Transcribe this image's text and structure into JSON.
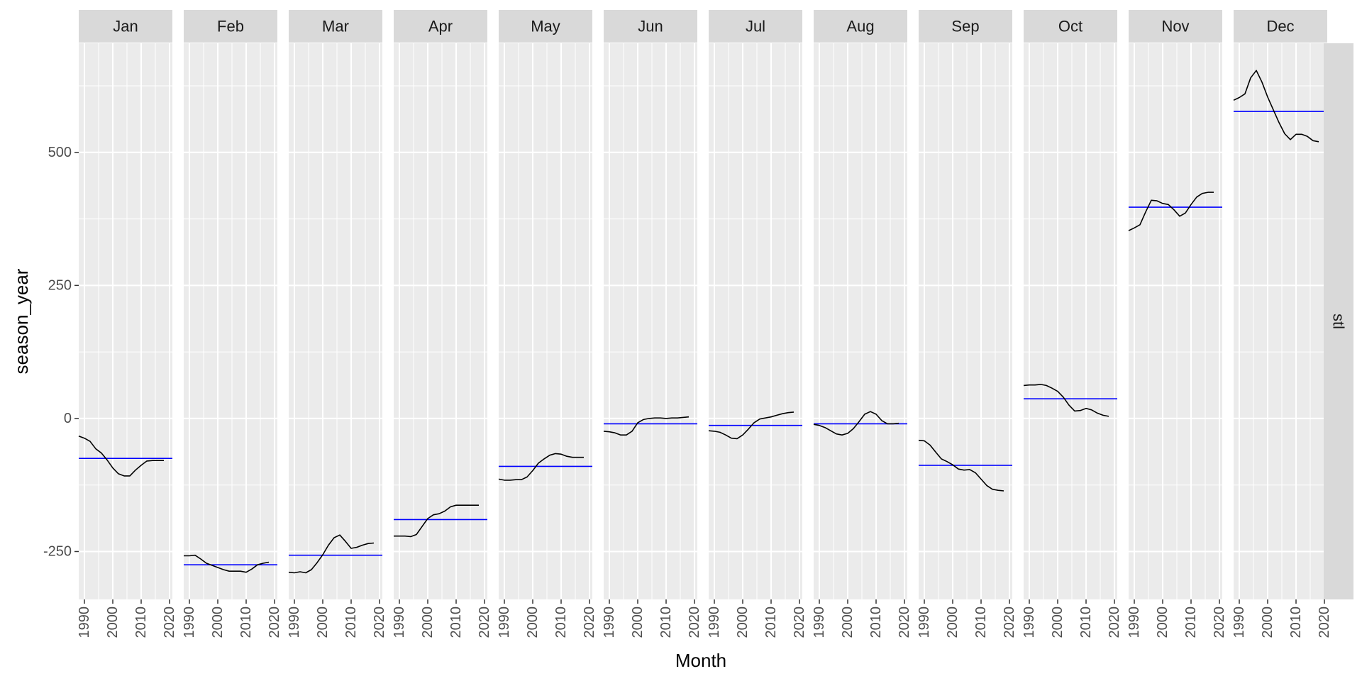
{
  "chart_data": {
    "type": "line",
    "xlabel": "Month",
    "ylabel": "season_year",
    "facet_label": "stl",
    "colors": {
      "panel_bg": "#EBEBEB",
      "strip_bg": "#D9D9D9",
      "grid": "#FFFFFF",
      "series": "#000000",
      "mean_line": "#0000FF"
    },
    "grid": true,
    "ylim": [
      -340,
      705
    ],
    "yticks": [
      -250,
      0,
      250,
      500
    ],
    "xlim": [
      1988,
      2021
    ],
    "xticks": [
      1990,
      2000,
      2010,
      2020
    ],
    "facets": [
      {
        "month": "Jan",
        "mean": -75,
        "x": [
          1988,
          1990,
          1992,
          1994,
          1996,
          1998,
          2000,
          2002,
          2004,
          2006,
          2008,
          2010,
          2012,
          2014,
          2016,
          2018
        ],
        "y": [
          -33,
          -37,
          -43,
          -57,
          -65,
          -78,
          -93,
          -104,
          -108,
          -108,
          -97,
          -88,
          -80,
          -79,
          -79,
          -79
        ]
      },
      {
        "month": "Feb",
        "mean": -275,
        "x": [
          1988,
          1990,
          1992,
          1994,
          1996,
          1998,
          2000,
          2002,
          2004,
          2006,
          2008,
          2010,
          2012,
          2014,
          2016,
          2018
        ],
        "y": [
          -258,
          -258,
          -257,
          -264,
          -272,
          -276,
          -280,
          -284,
          -287,
          -287,
          -287,
          -289,
          -283,
          -275,
          -272,
          -270
        ]
      },
      {
        "month": "Mar",
        "mean": -257,
        "x": [
          1988,
          1990,
          1992,
          1994,
          1996,
          1998,
          2000,
          2002,
          2004,
          2006,
          2008,
          2010,
          2012,
          2014,
          2016,
          2018
        ],
        "y": [
          -289,
          -290,
          -288,
          -290,
          -284,
          -271,
          -256,
          -238,
          -224,
          -219,
          -231,
          -244,
          -242,
          -238,
          -235,
          -234
        ]
      },
      {
        "month": "Apr",
        "mean": -190,
        "x": [
          1988,
          1990,
          1992,
          1994,
          1996,
          1998,
          2000,
          2002,
          2004,
          2006,
          2008,
          2010,
          2012,
          2014,
          2016,
          2018
        ],
        "y": [
          -221,
          -221,
          -221,
          -222,
          -218,
          -203,
          -188,
          -181,
          -179,
          -174,
          -166,
          -163,
          -163,
          -163,
          -163,
          -163
        ]
      },
      {
        "month": "May",
        "mean": -90,
        "x": [
          1988,
          1990,
          1992,
          1994,
          1996,
          1998,
          2000,
          2002,
          2004,
          2006,
          2008,
          2010,
          2012,
          2014,
          2016,
          2018
        ],
        "y": [
          -114,
          -116,
          -116,
          -115,
          -115,
          -110,
          -98,
          -84,
          -76,
          -69,
          -66,
          -67,
          -71,
          -73,
          -73,
          -73
        ]
      },
      {
        "month": "Jun",
        "mean": -10,
        "x": [
          1988,
          1990,
          1992,
          1994,
          1996,
          1998,
          2000,
          2002,
          2004,
          2006,
          2008,
          2010,
          2012,
          2014,
          2016,
          2018
        ],
        "y": [
          -24,
          -25,
          -27,
          -31,
          -31,
          -24,
          -8,
          -2,
          0,
          1,
          1,
          0,
          1,
          1,
          2,
          3
        ]
      },
      {
        "month": "Jul",
        "mean": -13,
        "x": [
          1988,
          1990,
          1992,
          1994,
          1996,
          1998,
          2000,
          2002,
          2004,
          2006,
          2008,
          2010,
          2012,
          2014,
          2016,
          2018
        ],
        "y": [
          -23,
          -24,
          -26,
          -31,
          -37,
          -38,
          -31,
          -20,
          -8,
          -1,
          1,
          3,
          6,
          9,
          11,
          12
        ]
      },
      {
        "month": "Aug",
        "mean": -10,
        "x": [
          1988,
          1990,
          1992,
          1994,
          1996,
          1998,
          2000,
          2002,
          2004,
          2006,
          2008,
          2010,
          2012,
          2014,
          2016,
          2018
        ],
        "y": [
          -11,
          -13,
          -17,
          -23,
          -29,
          -31,
          -28,
          -19,
          -6,
          8,
          13,
          8,
          -4,
          -10,
          -10,
          -9
        ]
      },
      {
        "month": "Sep",
        "mean": -88,
        "x": [
          1988,
          1990,
          1992,
          1994,
          1996,
          1998,
          2000,
          2002,
          2004,
          2006,
          2008,
          2010,
          2012,
          2014,
          2016,
          2018
        ],
        "y": [
          -41,
          -42,
          -50,
          -63,
          -76,
          -81,
          -87,
          -95,
          -97,
          -96,
          -102,
          -114,
          -126,
          -133,
          -135,
          -136
        ]
      },
      {
        "month": "Oct",
        "mean": 37,
        "x": [
          1988,
          1990,
          1992,
          1994,
          1996,
          1998,
          2000,
          2002,
          2004,
          2006,
          2008,
          2010,
          2012,
          2014,
          2016,
          2018
        ],
        "y": [
          62,
          63,
          63,
          64,
          62,
          57,
          51,
          40,
          25,
          14,
          15,
          19,
          16,
          10,
          6,
          4
        ]
      },
      {
        "month": "Nov",
        "mean": 397,
        "x": [
          1988,
          1990,
          1992,
          1994,
          1996,
          1998,
          2000,
          2002,
          2004,
          2006,
          2008,
          2010,
          2012,
          2014,
          2016,
          2018
        ],
        "y": [
          353,
          358,
          364,
          388,
          410,
          409,
          404,
          402,
          392,
          380,
          386,
          402,
          416,
          423,
          425,
          425
        ]
      },
      {
        "month": "Dec",
        "mean": 577,
        "x": [
          1988,
          1990,
          1992,
          1994,
          1996,
          1998,
          2000,
          2002,
          2004,
          2006,
          2008,
          2010,
          2012,
          2014,
          2016,
          2018
        ],
        "y": [
          598,
          603,
          610,
          640,
          654,
          632,
          604,
          580,
          556,
          535,
          524,
          534,
          534,
          530,
          522,
          520
        ]
      }
    ]
  }
}
